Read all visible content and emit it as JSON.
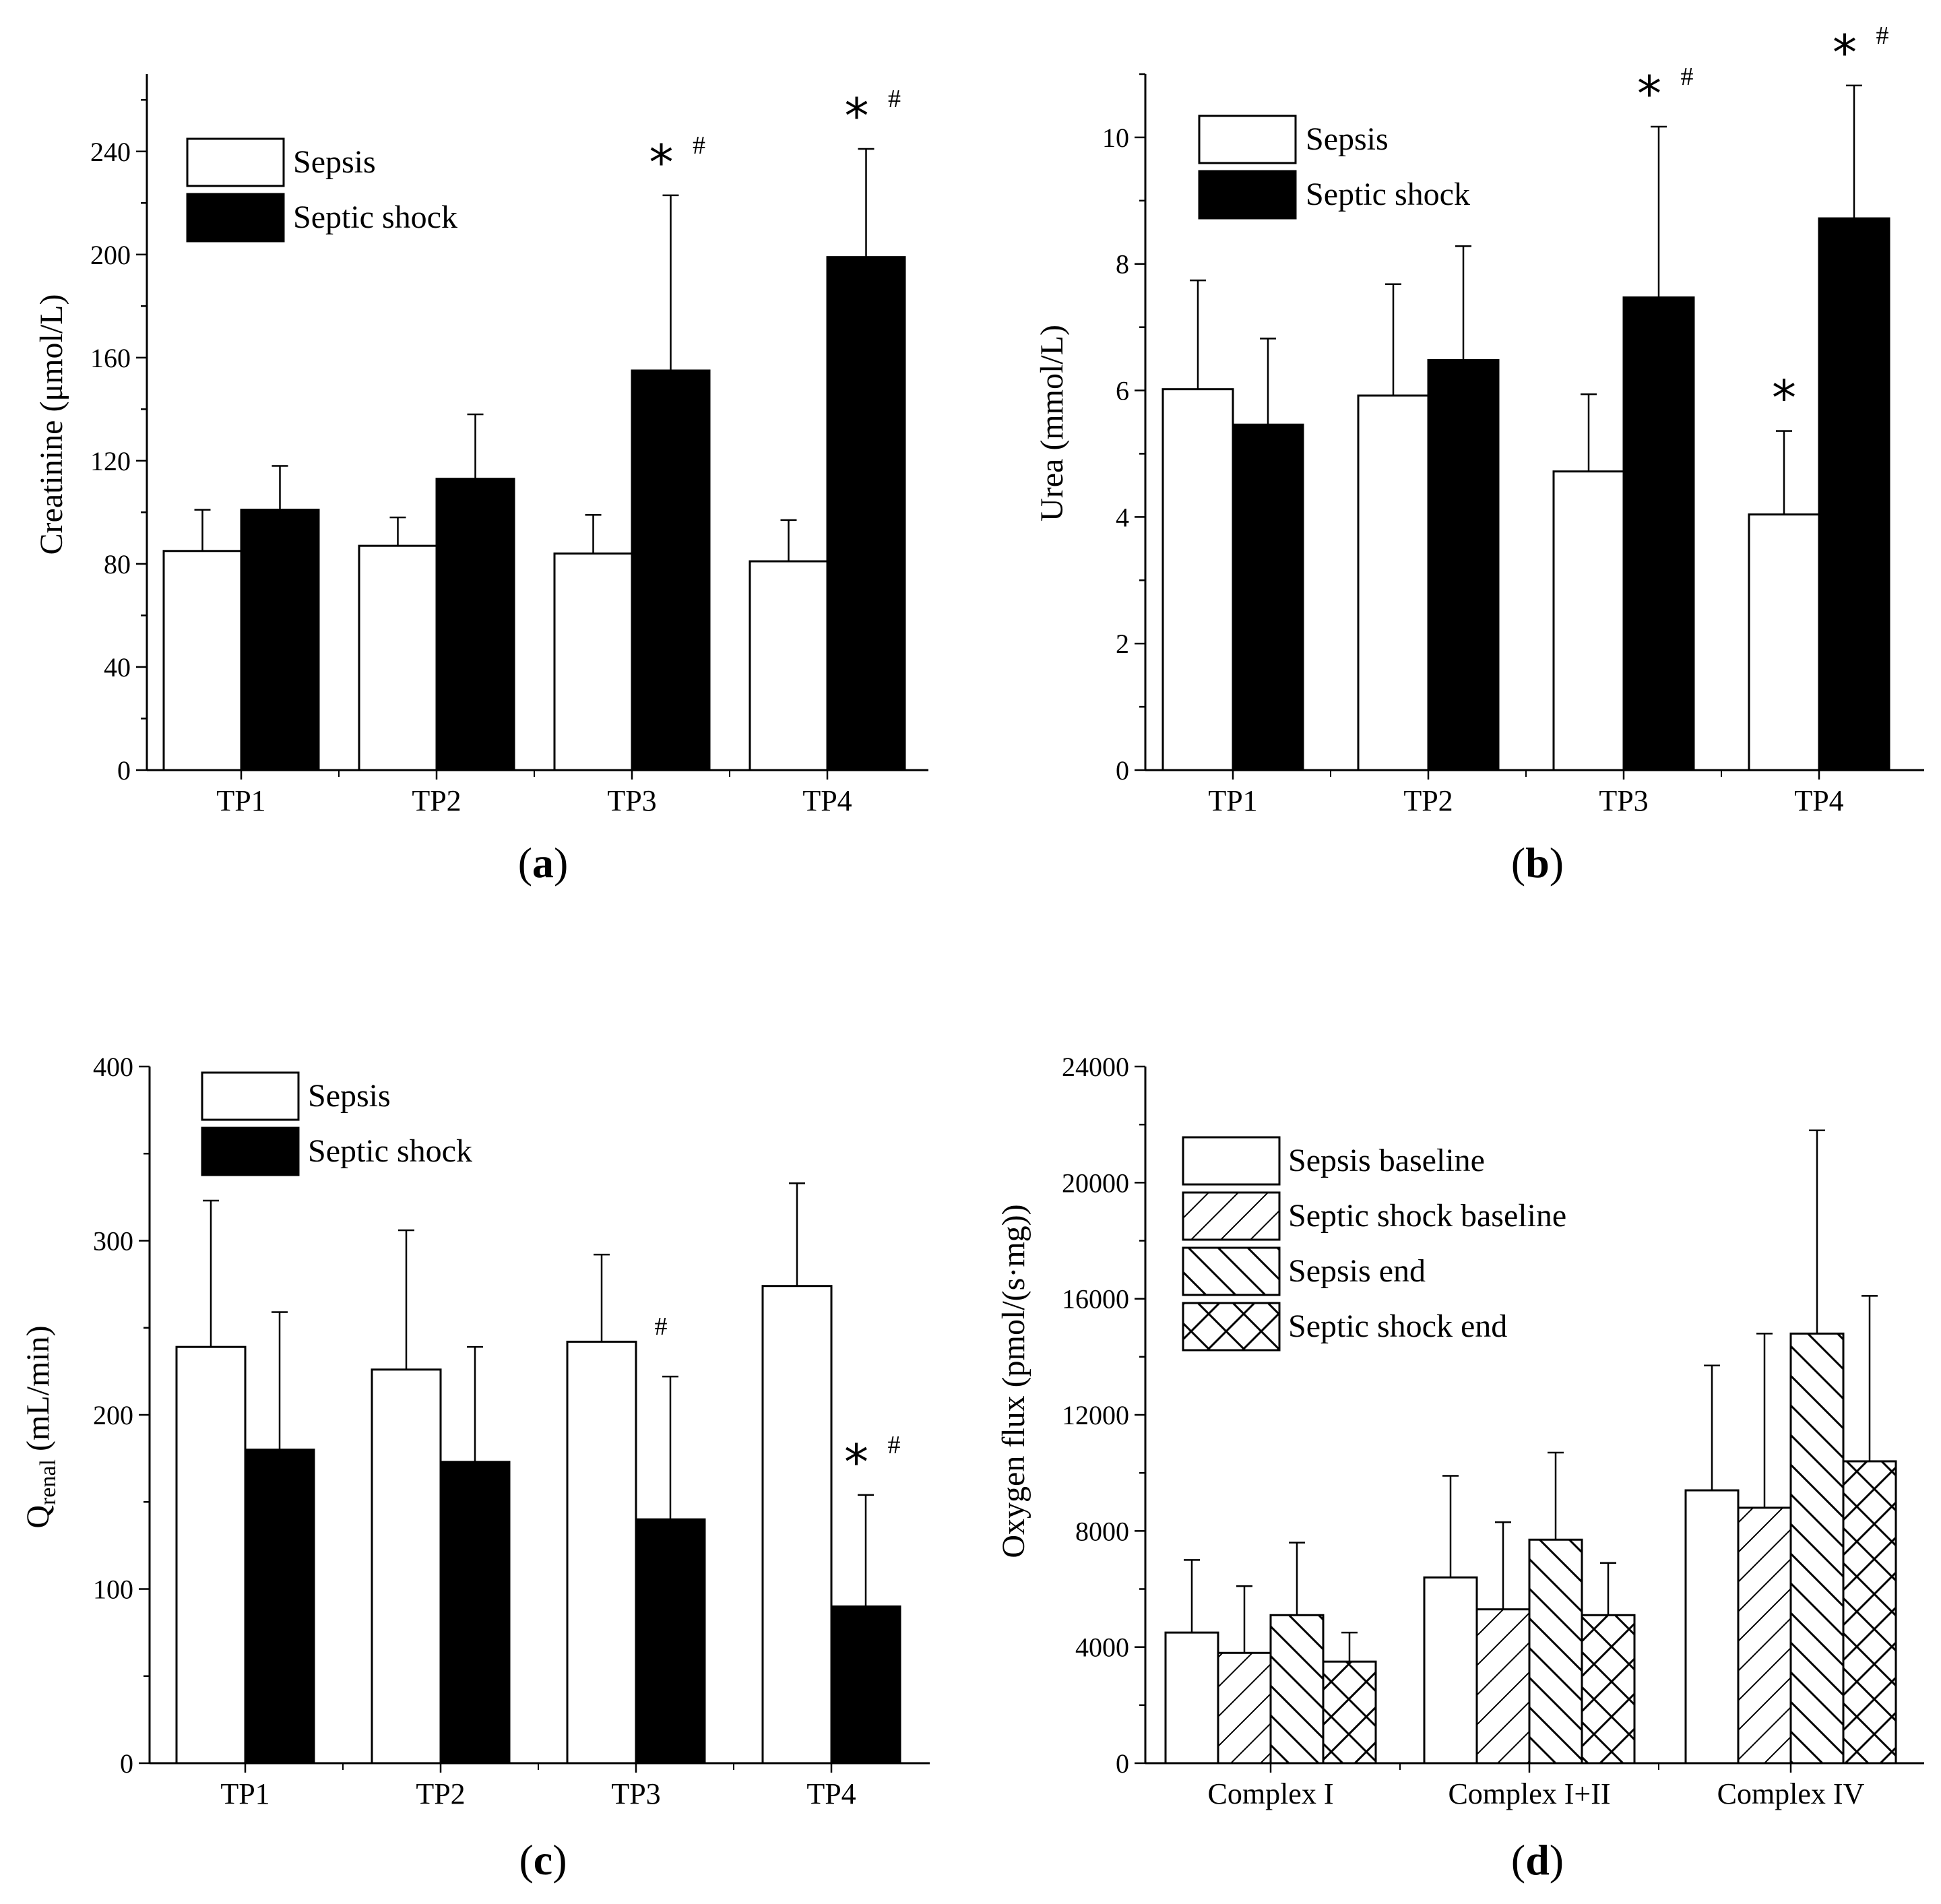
{
  "colors": {
    "sepsis": "#ffffff",
    "septic_shock": "#000000",
    "stroke": "#000000"
  },
  "panels": [
    {
      "id": "a",
      "label": "a",
      "ylabel": "Creatinine (μmol/L)",
      "legend": [
        "Sepsis",
        "Septic shock"
      ]
    },
    {
      "id": "b",
      "label": "b",
      "ylabel": "Urea (mmol/L)",
      "legend": [
        "Sepsis",
        "Septic shock"
      ]
    },
    {
      "id": "c",
      "label": "c",
      "ylabel_main": "Q",
      "ylabel_sub": "renal",
      "ylabel_rest": " (mL/min)",
      "legend": [
        "Sepsis",
        "Septic shock"
      ]
    },
    {
      "id": "d",
      "label": "d",
      "ylabel": "Oxygen flux (pmol/(s·mg))",
      "legend": [
        "Sepsis baseline",
        "Septic shock baseline",
        "Sepsis end",
        "Septic shock end"
      ]
    }
  ],
  "chart_data": [
    {
      "panel": "a",
      "type": "bar",
      "categories": [
        "TP1",
        "TP2",
        "TP3",
        "TP4"
      ],
      "ylabel": "Creatinine (μmol/L)",
      "ylim": [
        0,
        270
      ],
      "yticks": [
        0,
        40,
        80,
        120,
        160,
        200,
        240
      ],
      "legend_position": "top-left",
      "series": [
        {
          "name": "Sepsis",
          "values": [
            85,
            87,
            84,
            81
          ],
          "errors": [
            16,
            11,
            15,
            16
          ]
        },
        {
          "name": "Septic shock",
          "values": [
            101,
            113,
            155,
            199
          ],
          "errors": [
            17,
            25,
            68,
            42
          ]
        }
      ],
      "annotations": [
        {
          "category": "TP3",
          "series": "Septic shock",
          "marks": [
            "*",
            "#"
          ]
        },
        {
          "category": "TP4",
          "series": "Septic shock",
          "marks": [
            "*",
            "#"
          ]
        }
      ]
    },
    {
      "panel": "b",
      "type": "bar",
      "categories": [
        "TP1",
        "TP2",
        "TP3",
        "TP4"
      ],
      "ylabel": "Urea (mmol/L)",
      "ylim": [
        0,
        11
      ],
      "yticks": [
        0,
        2,
        4,
        6,
        8,
        10
      ],
      "legend_position": "top-left",
      "series": [
        {
          "name": "Sepsis",
          "values": [
            6.02,
            5.92,
            4.72,
            4.04
          ],
          "errors": [
            1.72,
            1.76,
            1.22,
            1.32
          ]
        },
        {
          "name": "Septic shock",
          "values": [
            5.46,
            6.48,
            7.47,
            8.72
          ],
          "errors": [
            1.36,
            1.8,
            2.7,
            2.1
          ]
        }
      ],
      "annotations": [
        {
          "category": "TP3",
          "series": "Septic shock",
          "marks": [
            "*",
            "#"
          ]
        },
        {
          "category": "TP4",
          "series": "Sepsis",
          "marks": [
            "*"
          ]
        },
        {
          "category": "TP4",
          "series": "Septic shock",
          "marks": [
            "*",
            "#"
          ]
        }
      ]
    },
    {
      "panel": "c",
      "type": "bar",
      "categories": [
        "TP1",
        "TP2",
        "TP3",
        "TP4"
      ],
      "ylabel": "Qrenal (mL/min)",
      "ylim": [
        0,
        400
      ],
      "yticks": [
        0,
        100,
        200,
        300,
        400
      ],
      "legend_position": "top-left",
      "series": [
        {
          "name": "Sepsis",
          "values": [
            239,
            226,
            242,
            274
          ],
          "errors": [
            84,
            80,
            50,
            59
          ]
        },
        {
          "name": "Septic shock",
          "values": [
            180,
            173,
            140,
            90
          ],
          "errors": [
            79,
            66,
            82,
            64
          ]
        }
      ],
      "annotations": [
        {
          "category": "TP3",
          "series": "Septic shock",
          "marks": [
            "#"
          ]
        },
        {
          "category": "TP4",
          "series": "Septic shock",
          "marks": [
            "*",
            "#"
          ]
        }
      ]
    },
    {
      "panel": "d",
      "type": "bar",
      "categories": [
        "Complex I",
        "Complex I+II",
        "Complex IV"
      ],
      "ylabel": "Oxygen flux (pmol/(s·mg))",
      "ylim": [
        0,
        24000
      ],
      "yticks": [
        0,
        4000,
        8000,
        12000,
        16000,
        20000,
        24000
      ],
      "legend_position": "top-left",
      "series": [
        {
          "name": "Sepsis baseline",
          "values": [
            4500,
            6400,
            9400
          ],
          "errors": [
            2500,
            3500,
            4300
          ]
        },
        {
          "name": "Septic shock baseline",
          "values": [
            3800,
            5300,
            8800
          ],
          "errors": [
            2300,
            3000,
            6000
          ]
        },
        {
          "name": "Sepsis end",
          "values": [
            5100,
            7700,
            14800
          ],
          "errors": [
            2500,
            3000,
            7000
          ]
        },
        {
          "name": "Septic shock end",
          "values": [
            3500,
            5100,
            10400
          ],
          "errors": [
            1000,
            1800,
            5700
          ]
        }
      ]
    }
  ]
}
